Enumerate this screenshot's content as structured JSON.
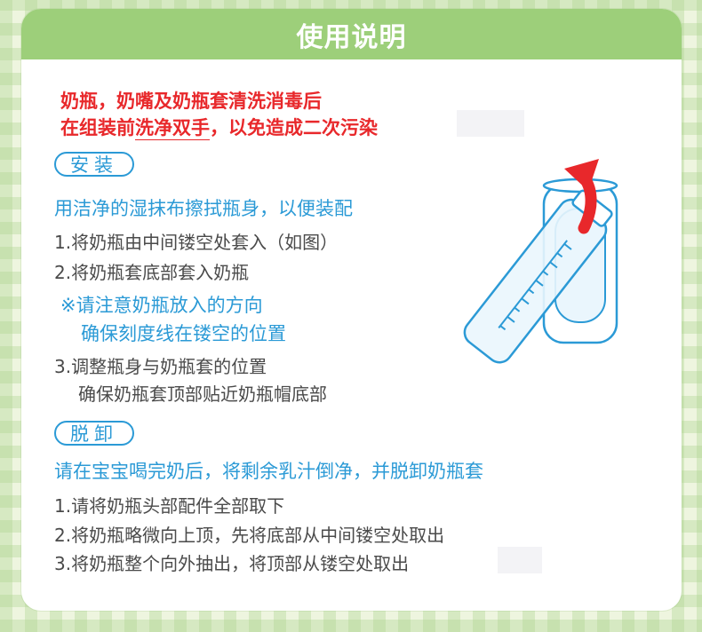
{
  "header": {
    "title": "使用说明"
  },
  "warning": {
    "line1": "奶瓶，奶嘴及奶瓶套清洗消毒后",
    "line2_prefix": "在组装前",
    "line2_emphasis": "洗净双手",
    "line2_suffix": "，以免造成二次污染"
  },
  "install": {
    "badge": "安装",
    "subtitle": "用洁净的湿抹布擦拭瓶身，以便装配",
    "step1": "1.将奶瓶由中间镂空处套入（如图）",
    "step2": "2.将奶瓶套底部套入奶瓶",
    "note1": "※请注意奶瓶放入的方向",
    "note2": "确保刻度线在镂空的位置",
    "step3": "3.调整瓶身与奶瓶套的位置",
    "step3_detail": "确保奶瓶套顶部贴近奶瓶帽底部"
  },
  "remove": {
    "badge": "脱卸",
    "subtitle": "请在宝宝喝完奶后，将剩余乳汁倒净，并脱卸奶瓶套",
    "step1": "1.请将奶瓶头部配件全部取下",
    "step2": "2.将奶瓶略微向上顶，先将底部从中间镂空处取出",
    "step3": "3.将奶瓶整个向外抽出，将顶部从镂空处取出"
  },
  "colors": {
    "header_green": "#9dcf7a",
    "warning_red": "#e8282b",
    "accent_blue": "#2b9ad6",
    "body_gray": "#4a4a4a"
  },
  "illustration": {
    "icon": "bottle-in-sleeve-illustration"
  }
}
